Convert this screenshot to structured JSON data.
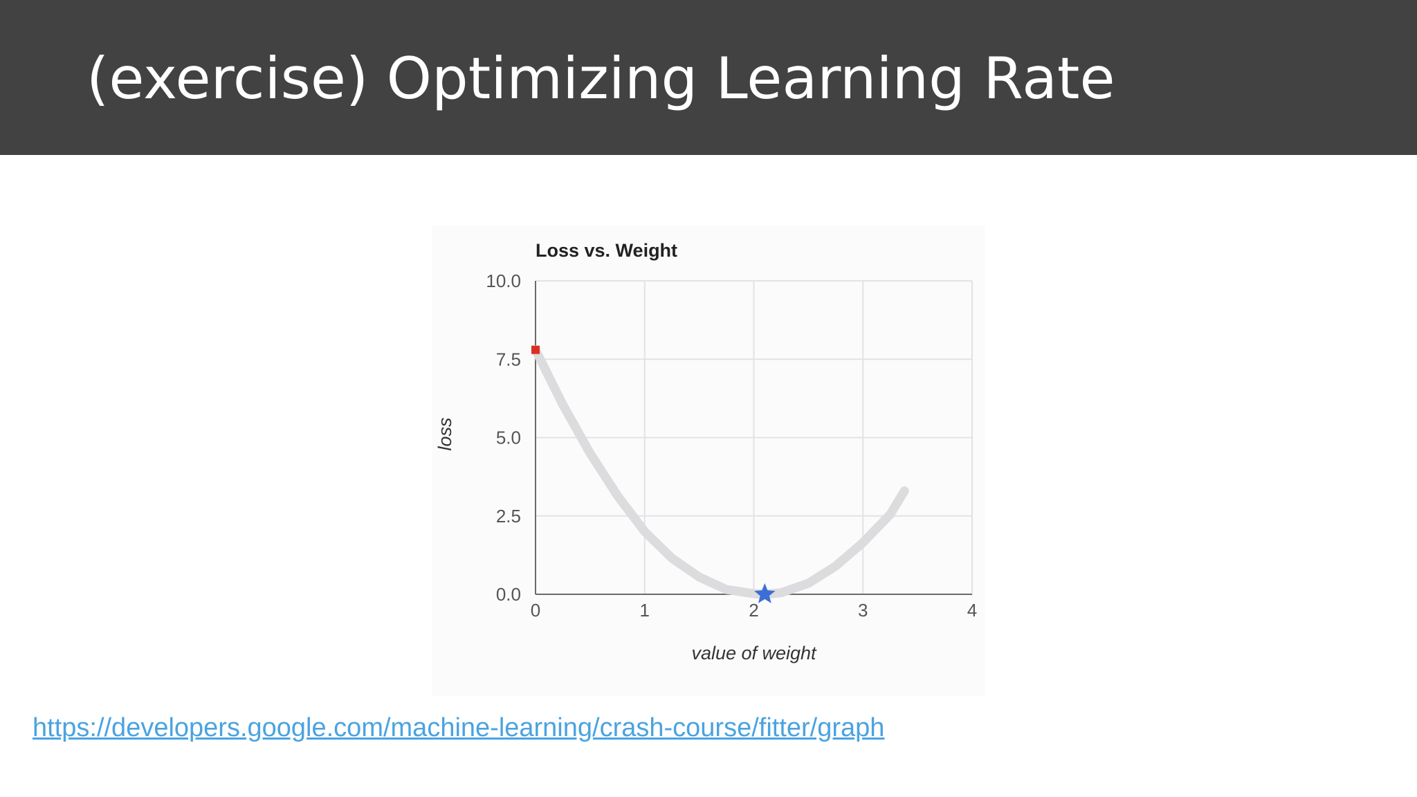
{
  "slide": {
    "title": "(exercise) Optimizing Learning Rate",
    "link_text": "https://developers.google.com/machine-learning/crash-course/fitter/graph"
  },
  "colors": {
    "header_bg": "#424242",
    "curve": "#dcdbdd",
    "start_marker": "#d93025",
    "minimum_star": "#3b6fd6",
    "link": "#4aa3e0"
  },
  "chart_data": {
    "type": "line",
    "title": "Loss vs. Weight",
    "xlabel": "value of weight",
    "ylabel": "loss",
    "xlim": [
      0,
      4
    ],
    "ylim": [
      0,
      10
    ],
    "x_ticks": [
      0,
      1,
      2,
      3,
      4
    ],
    "y_ticks": [
      0,
      2.5,
      5,
      7.5,
      10
    ],
    "x_tick_labels": [
      "0",
      "1",
      "2",
      "3",
      "4"
    ],
    "y_tick_labels": [
      "0.0",
      "2.5",
      "5.0",
      "7.5",
      "10.0"
    ],
    "grid": true,
    "series": [
      {
        "x": [
          0,
          0.25,
          0.5,
          0.75,
          1.0,
          1.25,
          1.5,
          1.75,
          2.0,
          2.1,
          2.25,
          2.5,
          2.75,
          3.0,
          3.25,
          3.38
        ],
        "y": [
          7.8,
          6.05,
          4.5,
          3.15,
          2.0,
          1.15,
          0.55,
          0.15,
          0.02,
          0.0,
          0.05,
          0.35,
          0.9,
          1.65,
          2.55,
          3.3
        ]
      }
    ],
    "markers": [
      {
        "kind": "start",
        "shape": "square",
        "x": 0,
        "y": 7.8
      },
      {
        "kind": "minimum",
        "shape": "star",
        "x": 2.1,
        "y": 0.0
      }
    ]
  }
}
